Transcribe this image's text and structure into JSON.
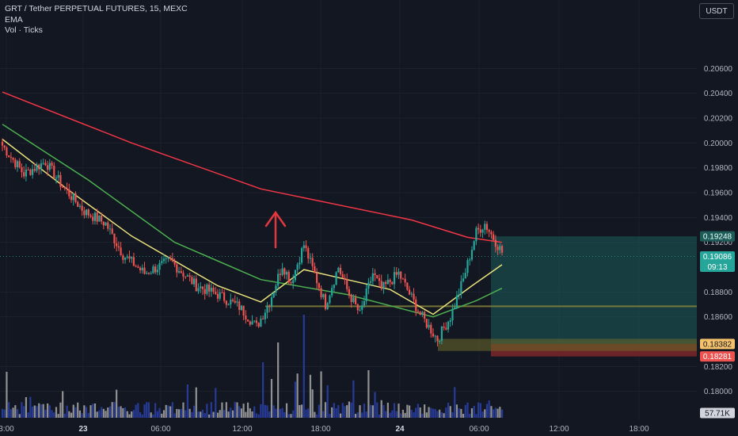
{
  "header": {
    "symbol_line": "GRT / Tether PERPETUAL FUTURES, 15, MEXC",
    "indicator_1": "EMA",
    "indicator_2": "Vol · Ticks"
  },
  "currency_button": "USDT",
  "colors": {
    "background": "#131722",
    "up_candle": "#26a69a",
    "down_candle": "#ef5350",
    "ema_slow": "#f23645",
    "ema_mid": "#4caf50",
    "ema_fast": "#e8e07a",
    "volume_down": "#2a3fa3",
    "volume_up": "#9e9e9e",
    "target_zone": "#1e5c5a",
    "stop_zone": "#8a2a2a"
  },
  "price_labels": {
    "upper": "0.19248",
    "last": "0.19086",
    "countdown": "09:13",
    "entry": "0.18382",
    "stop": "0.18281",
    "volume": "57.71K"
  },
  "chart_data": {
    "type": "candlestick",
    "x_tick_labels": [
      "3:00",
      "23",
      "06:00",
      "12:00",
      "18:00",
      "24",
      "06:00",
      "12:00",
      "18:00"
    ],
    "y_tick_labels": [
      "0.20600",
      "0.20400",
      "0.20200",
      "0.20000",
      "0.19800",
      "0.19600",
      "0.19400",
      "0.19200",
      "0.18800",
      "0.18600",
      "0.18200",
      "0.18000"
    ],
    "ylim": [
      0.178,
      0.208
    ],
    "anchors": [
      [
        0,
        0.1998
      ],
      [
        10,
        0.1975
      ],
      [
        20,
        0.1985
      ],
      [
        28,
        0.1965
      ],
      [
        38,
        0.1945
      ],
      [
        48,
        0.1935
      ],
      [
        56,
        0.191
      ],
      [
        66,
        0.1895
      ],
      [
        78,
        0.1905
      ],
      [
        90,
        0.1885
      ],
      [
        100,
        0.1878
      ],
      [
        110,
        0.1868
      ],
      [
        118,
        0.1852
      ],
      [
        124,
        0.1872
      ],
      [
        130,
        0.1902
      ],
      [
        134,
        0.1888
      ],
      [
        140,
        0.1918
      ],
      [
        150,
        0.187
      ],
      [
        156,
        0.19
      ],
      [
        160,
        0.1882
      ],
      [
        166,
        0.1862
      ],
      [
        172,
        0.1895
      ],
      [
        176,
        0.1882
      ],
      [
        184,
        0.1895
      ],
      [
        194,
        0.1862
      ],
      [
        202,
        0.1842
      ],
      [
        208,
        0.186
      ],
      [
        214,
        0.189
      ],
      [
        220,
        0.1928
      ],
      [
        224,
        0.1935
      ],
      [
        232,
        0.1912
      ]
    ],
    "ema_slow": [
      [
        0,
        0.2041
      ],
      [
        60,
        0.2
      ],
      [
        120,
        0.1963
      ],
      [
        190,
        0.1938
      ],
      [
        216,
        0.1924
      ],
      [
        232,
        0.192
      ]
    ],
    "ema_mid": [
      [
        0,
        0.2015
      ],
      [
        40,
        0.197
      ],
      [
        80,
        0.192
      ],
      [
        120,
        0.189
      ],
      [
        160,
        0.1878
      ],
      [
        200,
        0.186
      ],
      [
        220,
        0.1873
      ],
      [
        232,
        0.1883
      ]
    ],
    "ema_fast": [
      [
        0,
        0.2003
      ],
      [
        30,
        0.1963
      ],
      [
        60,
        0.1925
      ],
      [
        100,
        0.1885
      ],
      [
        120,
        0.1872
      ],
      [
        140,
        0.1898
      ],
      [
        160,
        0.189
      ],
      [
        180,
        0.1882
      ],
      [
        200,
        0.1862
      ],
      [
        218,
        0.1885
      ],
      [
        232,
        0.1902
      ]
    ],
    "target_zone": {
      "top": 0.19248,
      "bottom": 0.18382
    },
    "stop_zone": {
      "top": 0.18382,
      "bottom": 0.18281
    },
    "support_line": 0.18685,
    "yellow_zone": {
      "top": 0.18423,
      "bottom": 0.18325
    }
  }
}
